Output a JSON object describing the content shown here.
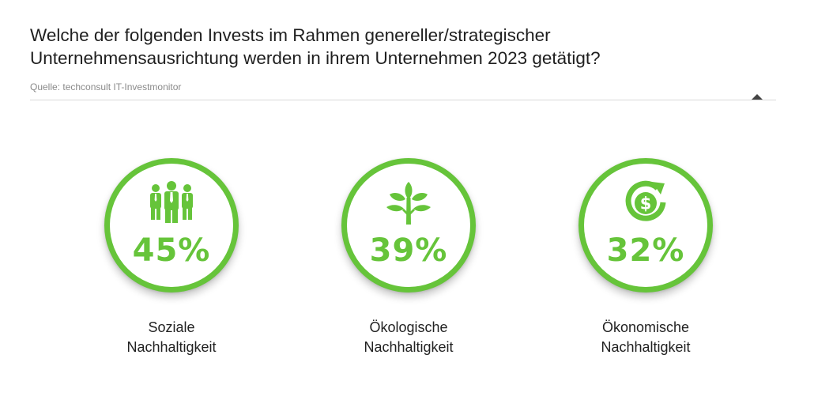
{
  "title": {
    "line1": "Welche der folgenden Invests im Rahmen genereller/strategischer",
    "line2": "Unternehmensausrichtung werden in ihrem Unternehmen 2023 getätigt?"
  },
  "source": "Quelle: techconsult IT-Investmonitor",
  "colors": {
    "accent": "#66c43a",
    "text": "#222222"
  },
  "chart_data": {
    "type": "kpi",
    "unit": "%",
    "items": [
      {
        "label_line1": "Soziale",
        "label_line2": "Nachhaltigkeit",
        "value": 45,
        "display": "45%",
        "icon": "people-group-icon"
      },
      {
        "label_line1": "Ökologische",
        "label_line2": "Nachhaltigkeit",
        "value": 39,
        "display": "39%",
        "icon": "plant-sprout-icon"
      },
      {
        "label_line1": "Ökonomische",
        "label_line2": "Nachhaltigkeit",
        "value": 32,
        "display": "32%",
        "icon": "dollar-cycle-icon"
      }
    ]
  }
}
